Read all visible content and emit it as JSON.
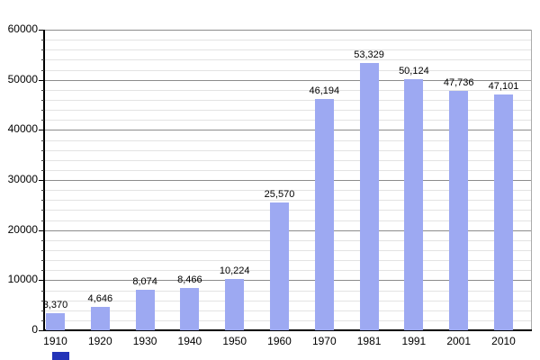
{
  "chart_data": {
    "type": "bar",
    "title": "",
    "xlabel": "",
    "ylabel": "",
    "categories": [
      "1910",
      "1920",
      "1930",
      "1940",
      "1950",
      "1960",
      "1970",
      "1981",
      "1991",
      "2001",
      "2010"
    ],
    "values": [
      3370,
      4646,
      8074,
      8466,
      10224,
      25570,
      46194,
      53329,
      50124,
      47736,
      47101
    ],
    "value_labels": [
      "3,370",
      "4,646",
      "8,074",
      "8,466",
      "10,224",
      "25,570",
      "46,194",
      "53,329",
      "50,124",
      "47,736",
      "47,101"
    ],
    "ylim": [
      0,
      60000
    ],
    "ytick_step": 10000,
    "yminor_step": 2000,
    "ytick_labels": [
      "0",
      "10000",
      "20000",
      "30000",
      "40000",
      "50000",
      "60000"
    ],
    "grid": "on",
    "legend_position": "bottom-left",
    "colors": {
      "bar_fill": "#9DA9F2",
      "major_grid": "#8C8C8C",
      "minor_grid": "#E3E3E3",
      "axis": "#000000",
      "plot_right_border": "#AAAAAA",
      "text": "#000000",
      "legend_swatch": "#2333B8",
      "background": "#FFFFFF"
    }
  }
}
